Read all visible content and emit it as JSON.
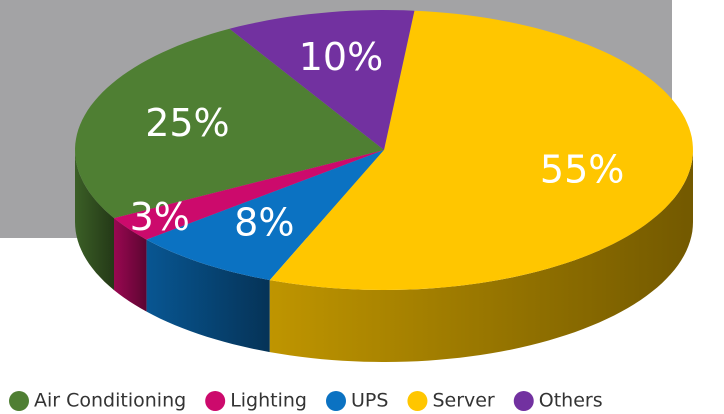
{
  "chart_data": {
    "type": "pie",
    "categories": [
      "Air Conditioning",
      "Lighting",
      "UPS",
      "Server",
      "Others"
    ],
    "values": [
      25,
      3,
      8,
      55,
      10
    ],
    "value_labels": [
      "25%",
      "3%",
      "8%",
      "55%",
      "10%"
    ],
    "colors": [
      "#4f7f33",
      "#cc0a6c",
      "#0b72c2",
      "#ffc600",
      "#7231a0"
    ],
    "legend": "bottom"
  }
}
